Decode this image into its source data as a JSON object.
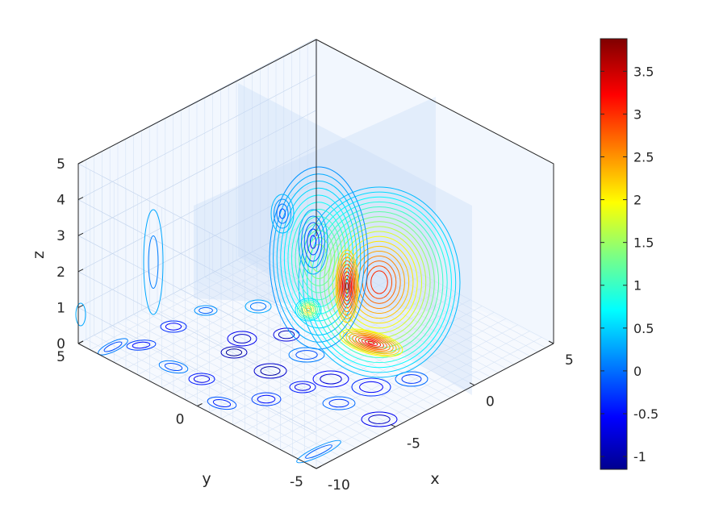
{
  "chart_data": {
    "type": "contour3",
    "title": "",
    "xlabel": "x",
    "ylabel": "y",
    "zlabel": "z",
    "x_ticks": [
      "-10",
      "-5",
      "0",
      "5"
    ],
    "y_ticks": [
      "-5",
      "0",
      "5"
    ],
    "z_ticks": [
      "0",
      "1",
      "2",
      "3",
      "4",
      "5"
    ],
    "xlim": [
      -10,
      5
    ],
    "ylim": [
      -5,
      5
    ],
    "zlim": [
      0,
      5
    ],
    "grid": true,
    "colormap": "jet",
    "colorbar": {
      "position": "right",
      "range": [
        -1.15,
        3.88
      ],
      "ticks": [
        "-1",
        "-0.5",
        "0",
        "0.5",
        "1",
        "1.5",
        "2",
        "2.5",
        "3",
        "3.5"
      ]
    },
    "slice_planes": [
      {
        "axis": "x",
        "value": 0
      },
      {
        "axis": "y",
        "value": 0
      }
    ],
    "peaks": [
      {
        "x": 0,
        "y": 0,
        "z": 1.5,
        "value": 3.88
      },
      {
        "x": -1.5,
        "y": 1,
        "z": 0.8,
        "value": 2.6
      },
      {
        "x": 2,
        "y": 0,
        "z": 0.4,
        "value": 3.5
      }
    ]
  },
  "colors": {
    "colormap": [
      "#00008f",
      "#0000ff",
      "#0080ff",
      "#00ffff",
      "#80ff80",
      "#ffff00",
      "#ff8000",
      "#ff0000",
      "#800000"
    ],
    "pane_fill": "#eef4fd",
    "grid_line": "#d6e3f5",
    "frame_line": "#262626"
  }
}
